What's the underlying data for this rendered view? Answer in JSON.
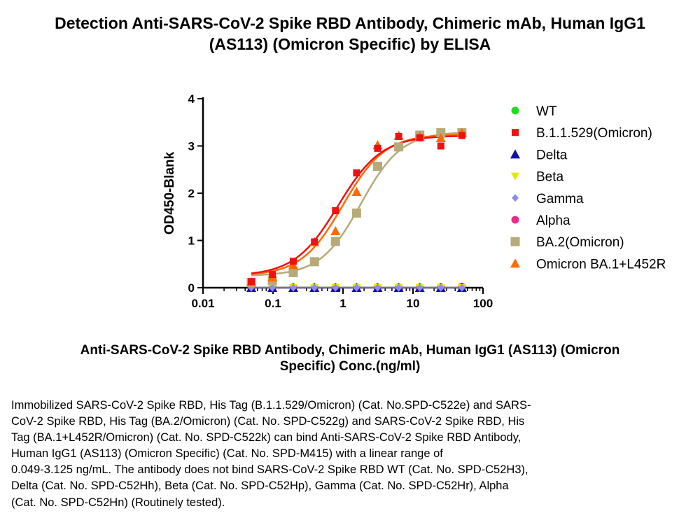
{
  "title_lines": [
    "Detection Anti-SARS-CoV-2 Spike RBD Antibody, Chimeric mAb, Human IgG1",
    "(AS113) (Omicron Specific)  by ELISA"
  ],
  "xlabel_lines": [
    "Anti-SARS-CoV-2 Spike RBD Antibody, Chimeric mAb, Human IgG1 (AS113) (Omicron",
    "Specific) Conc.(ng/ml)"
  ],
  "caption_lines": [
    "Immobilized SARS-CoV-2 Spike RBD, His Tag (B.1.1.529/Omicron) (Cat. No.SPD-C522e) and SARS-",
    "CoV-2 Spike RBD, His Tag (BA.2/Omicron) (Cat. No. SPD-C522g) and SARS-CoV-2 Spike RBD, His",
    "Tag (BA.1+L452R/Omicron) (Cat. No. SPD-C522k) can bind Anti-SARS-CoV-2 Spike RBD Antibody,",
    "Human IgG1 (AS113) (Omicron Specific) (Cat. No. SPD-M415) with a linear range of",
    "0.049-3.125 ng/mL. The antibody does not bind SARS-CoV-2 Spike RBD WT (Cat. No. SPD-C52H3),",
    "Delta (Cat. No. SPD-C52Hh), Beta (Cat. No. SPD-C52Hp), Gamma (Cat. No. SPD-C52Hr), Alpha",
    "(Cat. No. SPD-C52Hn) (Routinely tested)."
  ],
  "chart_data": {
    "type": "scatter",
    "xscale": "log",
    "xlim": [
      0.01,
      100
    ],
    "ylim": [
      0,
      4
    ],
    "ylabel": "OD450-Blank",
    "xticks": [
      0.01,
      0.1,
      1,
      10,
      100
    ],
    "xtick_labels": [
      "0.01",
      "0.1",
      "1",
      "10",
      "100"
    ],
    "yticks": [
      0,
      1,
      2,
      3,
      4
    ],
    "ytick_labels": [
      "0",
      "1",
      "2",
      "3",
      "4"
    ],
    "legend_position": "right",
    "x": [
      0.049,
      0.098,
      0.195,
      0.391,
      0.781,
      1.563,
      3.125,
      6.25,
      12.5,
      25,
      50
    ],
    "series": [
      {
        "name": "WT",
        "color": "#22dd22",
        "marker": "circle",
        "fit": false,
        "values": [
          0.01,
          0.01,
          0.01,
          0.01,
          0.01,
          0.01,
          0.01,
          0.01,
          0.01,
          0.01,
          0.01
        ]
      },
      {
        "name": "Alpha",
        "color": "#ee2a8a",
        "marker": "circle",
        "fit": false,
        "values": [
          0.0,
          0.0,
          0.0,
          0.0,
          0.0,
          0.0,
          0.0,
          0.0,
          0.0,
          0.01,
          0.02
        ]
      },
      {
        "name": "Delta",
        "color": "#1010aa",
        "marker": "triangle-up",
        "fit": false,
        "values": [
          0.0,
          0.0,
          0.0,
          0.0,
          0.0,
          0.0,
          0.0,
          0.0,
          0.0,
          0.0,
          0.0
        ]
      },
      {
        "name": "Beta",
        "color": "#e6e600",
        "marker": "triangle-down",
        "fit": false,
        "values": [
          0.0,
          0.0,
          0.0,
          0.0,
          0.0,
          0.0,
          0.0,
          0.0,
          0.0,
          0.0,
          0.0
        ]
      },
      {
        "name": "Gamma",
        "color": "#8c8cee",
        "marker": "diamond",
        "fit": false,
        "values": [
          0.0,
          0.0,
          0.0,
          0.0,
          0.0,
          0.0,
          0.0,
          0.0,
          0.0,
          0.0,
          0.0
        ]
      },
      {
        "name": "BA.2(Omicron)",
        "color": "#b6aa78",
        "marker": "square-large",
        "fit": true,
        "values": [
          0.11,
          0.15,
          0.32,
          0.55,
          0.98,
          1.58,
          2.57,
          2.98,
          3.23,
          3.28,
          3.28
        ]
      },
      {
        "name": "Omicron BA.1+L452R",
        "color": "#ff6a00",
        "marker": "triangle-up",
        "fit": true,
        "values": [
          0.12,
          0.22,
          0.48,
          0.97,
          1.2,
          2.03,
          3.02,
          3.22,
          3.2,
          3.17,
          3.28
        ]
      },
      {
        "name": "B.1.1.529(Omicron)",
        "color": "#ee1111",
        "marker": "square",
        "fit": true,
        "values": [
          0.13,
          0.28,
          0.56,
          0.97,
          1.63,
          2.43,
          2.95,
          3.2,
          3.17,
          3.0,
          3.22
        ]
      }
    ],
    "legend_order": [
      "WT",
      "B.1.1.529(Omicron)",
      "Delta",
      "Beta",
      "Gamma",
      "Alpha",
      "BA.2(Omicron)",
      "Omicron BA.1+L452R"
    ],
    "fits": [
      {
        "name": "BA.2(Omicron)",
        "bottom": 0.25,
        "top": 3.3,
        "ec50": 1.8,
        "hill": 1.5
      },
      {
        "name": "Omicron BA.1+L452R",
        "bottom": 0.25,
        "top": 3.25,
        "ec50": 1.0,
        "hill": 1.45
      },
      {
        "name": "B.1.1.529(Omicron)",
        "bottom": 0.25,
        "top": 3.22,
        "ec50": 0.85,
        "hill": 1.4
      }
    ]
  }
}
